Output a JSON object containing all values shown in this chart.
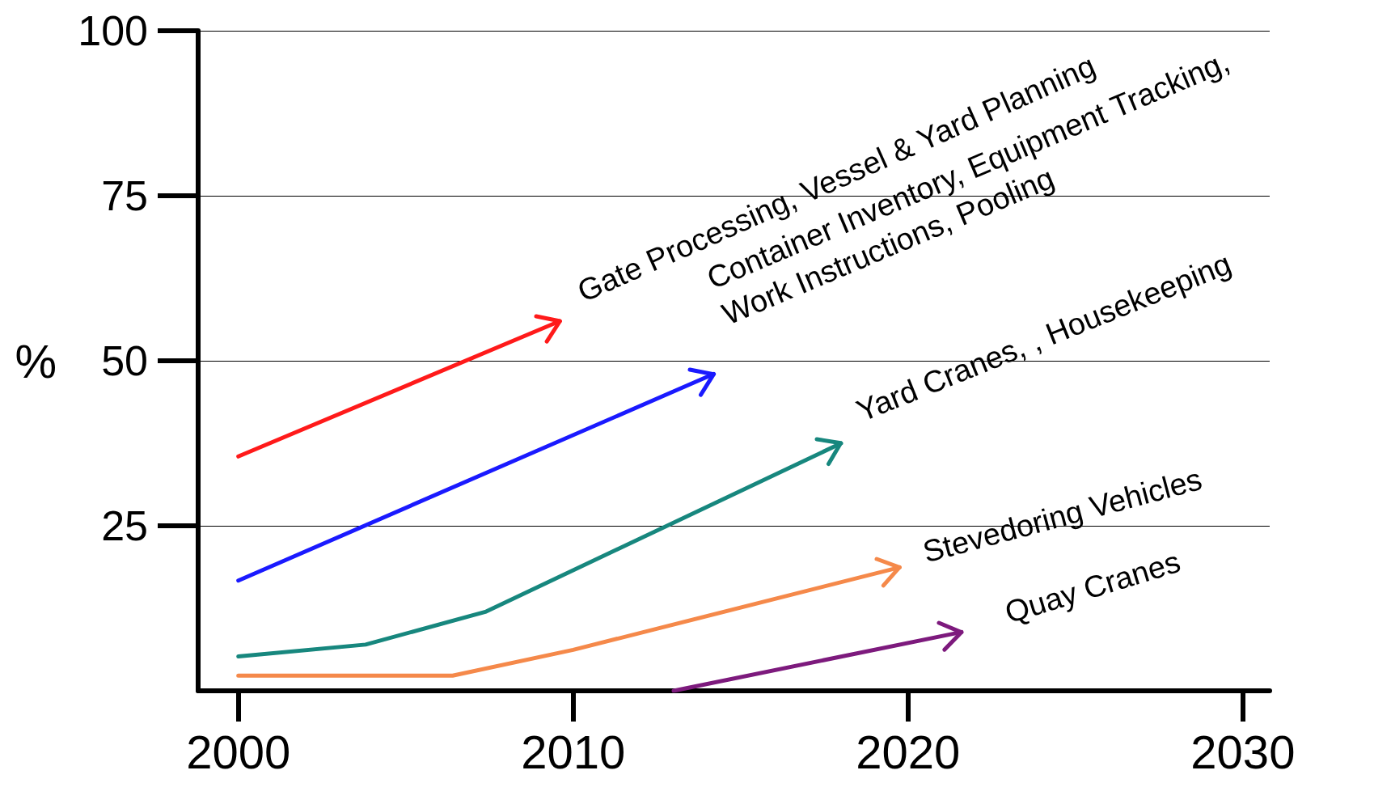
{
  "chart_data": {
    "type": "line",
    "ylabel": "%",
    "xlim": [
      1998.8,
      2030.8
    ],
    "ylim": [
      0,
      100
    ],
    "xticks": [
      2000,
      2010,
      2020,
      2030
    ],
    "yticks": [
      25,
      50,
      75,
      100
    ],
    "grid": "y",
    "line_style": "solid",
    "series": [
      {
        "color": "#ff1a1a",
        "x": [
          2000,
          2009.6
        ],
        "values": [
          35.5,
          56
        ]
      },
      {
        "color": "#1a1aff",
        "x": [
          2000,
          2014.2
        ],
        "values": [
          16.7,
          48
        ]
      },
      {
        "color": "#17877e",
        "x": [
          2000,
          2003.8,
          2007.4,
          2018
        ],
        "values": [
          5.2,
          7,
          12,
          37.5
        ]
      },
      {
        "color": "#f5894a",
        "x": [
          2000,
          2006.4,
          2010,
          2019.75
        ],
        "values": [
          2.3,
          2.3,
          6.2,
          18.7
        ]
      },
      {
        "color": "#7d1a7d",
        "x": [
          2013,
          2021.6
        ],
        "values": [
          0,
          8.9
        ]
      }
    ],
    "annotations": [
      "Gate Processing, Vessel & Yard Planning",
      "Container Inventory, Equipment Tracking,\nWork Instructions, Pooling",
      "Yard Cranes, , Housekeeping",
      "Stevedoring Vehicles",
      "Quay Cranes"
    ]
  }
}
